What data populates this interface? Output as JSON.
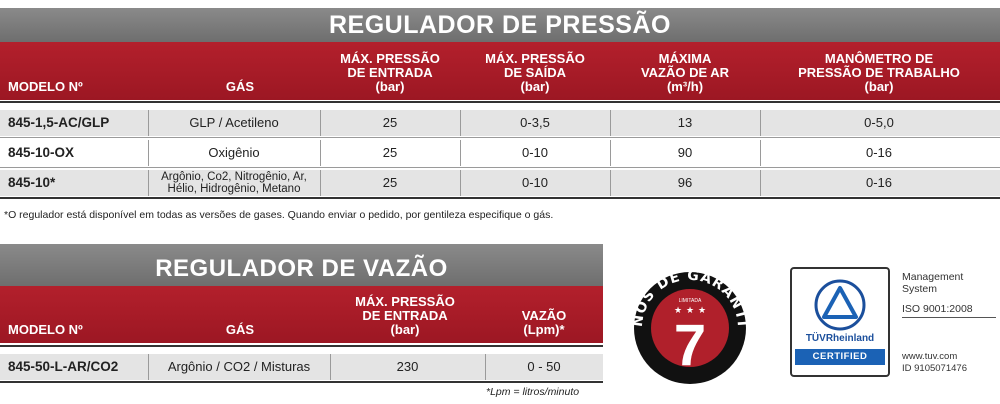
{
  "table1": {
    "title": "REGULADOR DE PRESSÃO",
    "headers": {
      "model": "MODELO Nº",
      "gas": "GÁS",
      "inlet_l1": "MÁX. PRESSÃO",
      "inlet_l2": "DE ENTRADA",
      "inlet_l3": "(bar)",
      "outlet_l1": "MÁX. PRESSÃO",
      "outlet_l2": "DE SAÍDA",
      "outlet_l3": "(bar)",
      "flow_l1": "MÁXIMA",
      "flow_l2": "VAZÃO DE AR",
      "flow_l3": "(m³/h)",
      "gauge_l1": "MANÔMETRO DE",
      "gauge_l2": "PRESSÃO DE TRABALHO",
      "gauge_l3": "(bar)"
    },
    "rows": [
      {
        "model": "845-1,5-AC/GLP",
        "gas": "GLP / Acetileno",
        "gas_l2": "",
        "inlet": "25",
        "outlet": "0-3,5",
        "flow": "13",
        "gauge": "0-5,0"
      },
      {
        "model": "845-10-OX",
        "gas": "Oxigênio",
        "gas_l2": "",
        "inlet": "25",
        "outlet": "0-10",
        "flow": "90",
        "gauge": "0-16"
      },
      {
        "model": "845-10*",
        "gas": "Argônio, Co2, Nitrogênio, Ar,",
        "gas_l2": "Hélio, Hidrogênio, Metano",
        "inlet": "25",
        "outlet": "0-10",
        "flow": "96",
        "gauge": "0-16"
      }
    ],
    "footnote": "*O regulador está disponível em todas as versões de gases. Quando enviar o pedido, por gentileza especifique o gás."
  },
  "table2": {
    "title": "REGULADOR DE VAZÃO",
    "headers": {
      "model": "MODELO Nº",
      "gas": "GÁS",
      "inlet_l1": "MÁX. PRESSÃO",
      "inlet_l2": "DE ENTRADA",
      "inlet_l3": "(bar)",
      "flow_l1": "VAZÃO",
      "flow_l2": "(Lpm)*"
    },
    "rows": [
      {
        "model": "845-50-L-AR/CO2",
        "gas": "Argônio / CO2 / Misturas",
        "inlet": "230",
        "flow": "0 - 50"
      }
    ],
    "footnote": "*Lpm = litros/minuto"
  },
  "badge": {
    "arc_text": "ANOS DE GARANTIA",
    "subtitle": "LIMITADA",
    "number": "7"
  },
  "certificate": {
    "brand": "TÜVRheinland",
    "certified": "CERTIFIED",
    "line1": "Management",
    "line2": "System",
    "line3": "ISO 9001:2008",
    "url": "www.tuv.com",
    "id": "ID 9105071476"
  },
  "colors": {
    "title_gray": "#7a7a7a",
    "header_red": "#a81b27",
    "row_shade": "#e4e4e4",
    "tuv_blue": "#1b62b5"
  }
}
